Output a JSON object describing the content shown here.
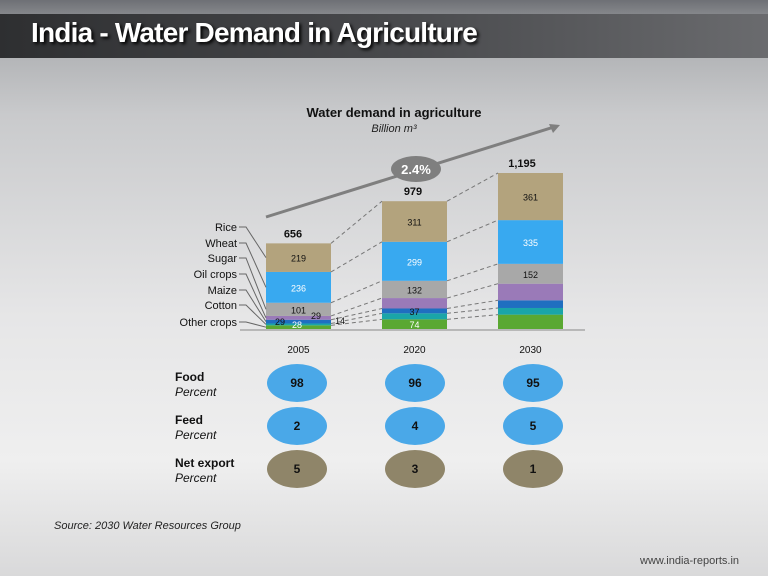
{
  "slide_title": "India - Water Demand in Agriculture",
  "chart_data": {
    "type": "bar",
    "stacked": true,
    "title": "Water demand in agriculture",
    "subtitle": "Billion m³",
    "categories": [
      "2005",
      "2020",
      "2030"
    ],
    "totals": [
      "656",
      "979",
      "1,195"
    ],
    "growth_label": "2.4%",
    "series": [
      {
        "name": "Other crops",
        "color": "#5aa832",
        "values": [
          28,
          74,
          110
        ],
        "labels": [
          "28",
          "74",
          null
        ]
      },
      {
        "name": "Cotton",
        "color": "#1aa5a8",
        "values": [
          14,
          46,
          51
        ],
        "labels": [
          "14",
          null,
          null
        ]
      },
      {
        "name": "Maize",
        "color": "#1f6fc0",
        "values": [
          29,
          37,
          59
        ],
        "labels": [
          "29",
          "37",
          null
        ]
      },
      {
        "name": "Oil crops",
        "color": "#9a7ab8",
        "values": [
          29,
          80,
          127
        ],
        "labels": [
          "29",
          null,
          null
        ]
      },
      {
        "name": "Sugar",
        "color": "#a8a8a8",
        "values": [
          101,
          132,
          152
        ],
        "labels": [
          "101",
          "132",
          "152"
        ]
      },
      {
        "name": "Wheat",
        "color": "#38a9f0",
        "values": [
          236,
          299,
          335
        ],
        "labels": [
          "236",
          "299",
          "335"
        ]
      },
      {
        "name": "Rice",
        "color": "#b3a37d",
        "values": [
          219,
          311,
          361
        ],
        "labels": [
          "219",
          "311",
          "361"
        ]
      }
    ],
    "ylim": [
      0,
      1195
    ],
    "legend": "left",
    "grid": false
  },
  "share_table": {
    "rows": [
      {
        "label": "Food",
        "unit": "Percent",
        "values": [
          "98",
          "96",
          "95"
        ],
        "color": "#4aa8e8"
      },
      {
        "label": "Feed",
        "unit": "Percent",
        "values": [
          "2",
          "4",
          "5"
        ],
        "color": "#4aa8e8"
      },
      {
        "label": "Net export",
        "unit": "Percent",
        "values": [
          "5",
          "3",
          "1"
        ],
        "color": "#8f8569"
      }
    ]
  },
  "source": "Source: 2030 Water Resources Group",
  "website": "www.india-reports.in"
}
